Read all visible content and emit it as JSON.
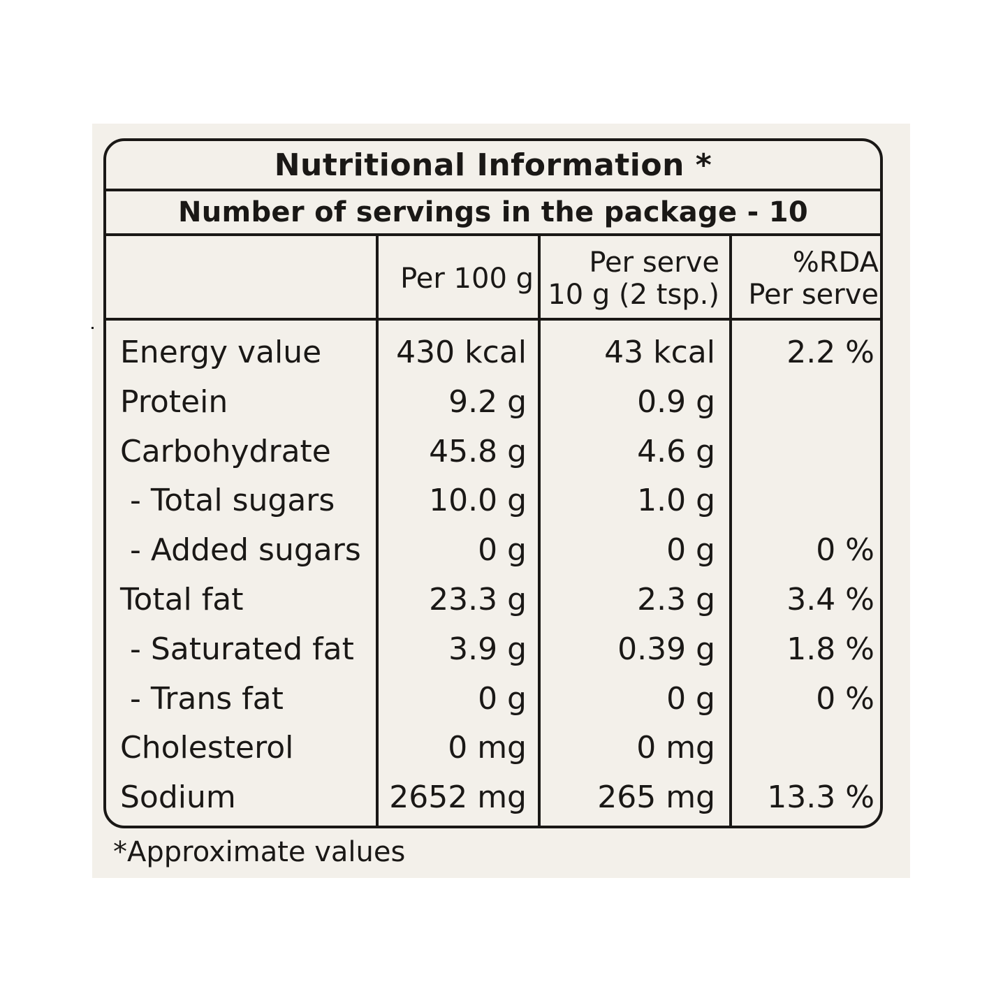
{
  "label": {
    "title": "Nutritional Information *",
    "servings": "Number of servings in the package - 10",
    "headers": {
      "per100": "Per 100 g",
      "perServe_line1": "Per serve",
      "perServe_line2": "10 g (2 tsp.)",
      "rda_line1": "%RDA",
      "rda_line2": "Per serve"
    },
    "rows": [
      {
        "name": "Energy value",
        "per100": "430 kcal",
        "perServe": "43 kcal",
        "rda": "2.2 %"
      },
      {
        "name": "Protein",
        "per100": "9.2 g",
        "perServe": "0.9 g",
        "rda": ""
      },
      {
        "name": "Carbohydrate",
        "per100": "45.8 g",
        "perServe": "4.6 g",
        "rda": ""
      },
      {
        "name": " - Total sugars",
        "per100": "10.0 g",
        "perServe": "1.0 g",
        "rda": ""
      },
      {
        "name": " - Added sugars",
        "per100": "0 g",
        "perServe": "0 g",
        "rda": "0 %"
      },
      {
        "name": "Total fat",
        "per100": "23.3 g",
        "perServe": "2.3 g",
        "rda": "3.4 %"
      },
      {
        "name": " - Saturated fat",
        "per100": "3.9 g",
        "perServe": "0.39 g",
        "rda": "1.8 %"
      },
      {
        "name": " - Trans fat",
        "per100": "0 g",
        "perServe": "0 g",
        "rda": "0 %"
      },
      {
        "name": "Cholesterol",
        "per100": "0 mg",
        "perServe": "0 mg",
        "rda": ""
      },
      {
        "name": "Sodium",
        "per100": "2652 mg",
        "perServe": "265 mg",
        "rda": "13.3 %"
      }
    ],
    "footnote": "*Approximate values"
  }
}
